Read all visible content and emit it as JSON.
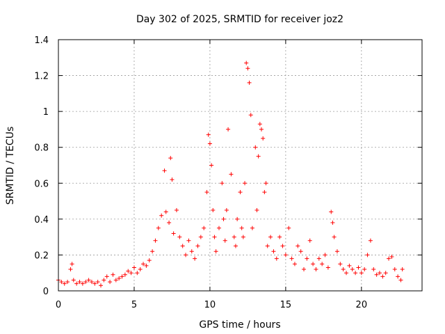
{
  "chart_data": {
    "type": "scatter",
    "title": "Day 302 of 2025, SRMTID for receiver joz2",
    "xlabel": "GPS time / hours",
    "ylabel": "SRMTID / TECUs",
    "xlim": [
      0,
      24
    ],
    "ylim": [
      0,
      1.4
    ],
    "x_ticks": [
      0,
      5,
      10,
      15,
      20
    ],
    "x_tick_labels": [
      "0",
      "5",
      "10",
      "15",
      "20"
    ],
    "y_ticks": [
      0,
      0.2,
      0.4,
      0.6,
      0.8,
      1,
      1.2,
      1.4
    ],
    "y_tick_labels": [
      "0",
      "0.2",
      "0.4",
      "0.6",
      "0.8",
      "1",
      "1.2",
      "1.4"
    ],
    "grid": true,
    "marker": "+",
    "color": "#ff0000",
    "series": [
      {
        "name": "SRMTID",
        "x": [
          0.0,
          0.2,
          0.4,
          0.6,
          0.8,
          0.9,
          1.0,
          1.2,
          1.4,
          1.6,
          1.8,
          2.0,
          2.2,
          2.4,
          2.6,
          2.8,
          3.0,
          3.2,
          3.4,
          3.6,
          3.8,
          4.0,
          4.2,
          4.4,
          4.6,
          4.8,
          5.0,
          5.2,
          5.4,
          5.6,
          5.8,
          6.0,
          6.2,
          6.4,
          6.6,
          6.8,
          7.0,
          7.1,
          7.3,
          7.4,
          7.5,
          7.6,
          7.8,
          8.0,
          8.2,
          8.4,
          8.6,
          8.8,
          9.0,
          9.2,
          9.4,
          9.6,
          9.8,
          9.9,
          10.0,
          10.1,
          10.2,
          10.3,
          10.4,
          10.6,
          10.8,
          10.9,
          11.0,
          11.1,
          11.2,
          11.4,
          11.6,
          11.7,
          11.8,
          12.0,
          12.1,
          12.2,
          12.3,
          12.4,
          12.5,
          12.6,
          12.7,
          12.8,
          13.0,
          13.1,
          13.2,
          13.3,
          13.4,
          13.5,
          13.6,
          13.7,
          13.8,
          14.0,
          14.2,
          14.4,
          14.6,
          14.8,
          15.0,
          15.2,
          15.4,
          15.6,
          15.8,
          16.0,
          16.2,
          16.4,
          16.6,
          16.8,
          17.0,
          17.2,
          17.4,
          17.6,
          17.8,
          18.0,
          18.1,
          18.2,
          18.4,
          18.6,
          18.8,
          19.0,
          19.2,
          19.4,
          19.6,
          19.8,
          20.0,
          20.2,
          20.4,
          20.6,
          20.8,
          21.0,
          21.2,
          21.4,
          21.6,
          21.8,
          22.0,
          22.2,
          22.4,
          22.6,
          22.7
        ],
        "y": [
          0.06,
          0.05,
          0.04,
          0.05,
          0.12,
          0.15,
          0.06,
          0.04,
          0.05,
          0.04,
          0.05,
          0.06,
          0.05,
          0.04,
          0.05,
          0.03,
          0.06,
          0.08,
          0.05,
          0.09,
          0.06,
          0.07,
          0.08,
          0.09,
          0.11,
          0.1,
          0.13,
          0.1,
          0.12,
          0.15,
          0.14,
          0.17,
          0.22,
          0.28,
          0.35,
          0.42,
          0.67,
          0.44,
          0.38,
          0.74,
          0.62,
          0.32,
          0.45,
          0.3,
          0.25,
          0.2,
          0.28,
          0.22,
          0.18,
          0.25,
          0.3,
          0.35,
          0.55,
          0.87,
          0.82,
          0.7,
          0.45,
          0.3,
          0.22,
          0.35,
          0.6,
          0.4,
          0.28,
          0.45,
          0.9,
          0.65,
          0.3,
          0.25,
          0.4,
          0.55,
          0.35,
          0.3,
          0.6,
          1.27,
          1.24,
          1.16,
          0.98,
          0.35,
          0.8,
          0.45,
          0.75,
          0.93,
          0.9,
          0.85,
          0.55,
          0.6,
          0.25,
          0.3,
          0.22,
          0.18,
          0.3,
          0.25,
          0.2,
          0.35,
          0.18,
          0.15,
          0.25,
          0.22,
          0.12,
          0.18,
          0.28,
          0.15,
          0.12,
          0.18,
          0.15,
          0.2,
          0.13,
          0.44,
          0.38,
          0.3,
          0.22,
          0.15,
          0.12,
          0.1,
          0.14,
          0.12,
          0.1,
          0.13,
          0.1,
          0.12,
          0.2,
          0.28,
          0.12,
          0.09,
          0.1,
          0.08,
          0.1,
          0.18,
          0.19,
          0.12,
          0.08,
          0.06,
          0.12
        ]
      }
    ]
  }
}
